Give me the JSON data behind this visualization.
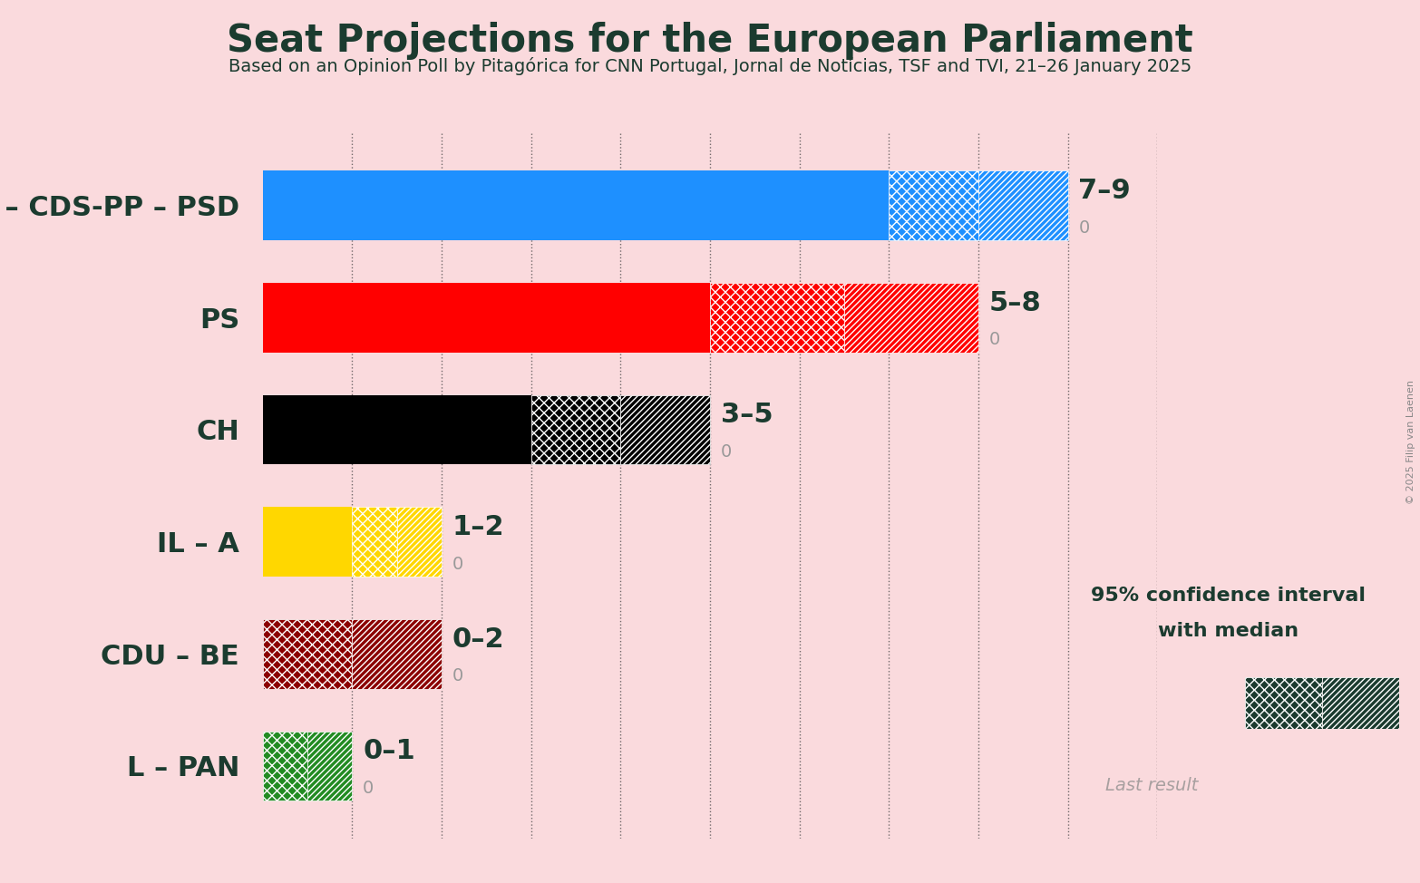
{
  "title": "Seat Projections for the European Parliament",
  "subtitle": "Based on an Opinion Poll by Pitagórica for CNN Portugal, Jornal de Notícias, TSF and TVI, 21–26 January 2025",
  "copyright": "© 2025 Filip van Laenen",
  "background_color": "#FADADD",
  "parties": [
    "AD – CDS-PP – PSD",
    "PS",
    "CH",
    "IL – A",
    "CDU – BE",
    "L – PAN"
  ],
  "median": [
    7,
    5,
    3,
    1,
    0,
    0
  ],
  "ci_high": [
    9,
    8,
    5,
    2,
    2,
    1
  ],
  "range_labels": [
    "7–9",
    "5–8",
    "3–5",
    "1–2",
    "0–2",
    "0–1"
  ],
  "colors": [
    "#1E90FF",
    "#FF0000",
    "#000000",
    "#FFD700",
    "#8B0000",
    "#228B22"
  ],
  "title_color": "#1B3B2F",
  "subtitle_color": "#1B3B2F",
  "label_color": "#1B3B2F",
  "range_label_color": "#1B3B2F",
  "zero_label_color": "#999999",
  "dark_green": "#1B3B2F",
  "gray_color": "#A8A0A0",
  "xlim_max": 10,
  "bar_height": 0.62,
  "grid_values": [
    1,
    2,
    3,
    4,
    5,
    6,
    7,
    8,
    9,
    10
  ],
  "legend_text1": "95% confidence interval",
  "legend_text2": "with median",
  "legend_last": "Last result",
  "title_fontsize": 30,
  "subtitle_fontsize": 14,
  "label_fontsize": 22,
  "range_fontsize": 22,
  "zero_fontsize": 14
}
